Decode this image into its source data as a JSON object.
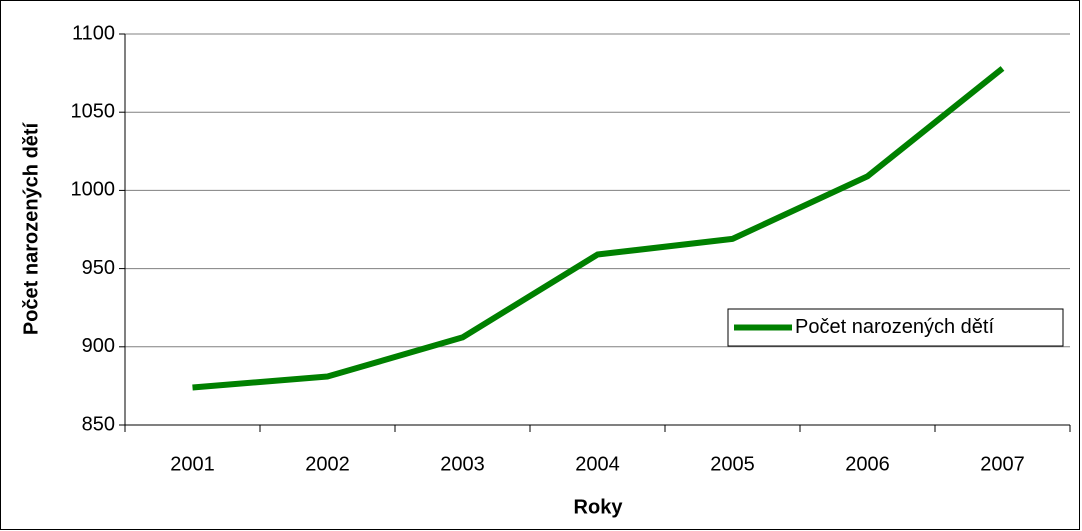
{
  "chart_data": {
    "type": "line",
    "categories": [
      "2001",
      "2002",
      "2003",
      "2004",
      "2005",
      "2006",
      "2007"
    ],
    "series": [
      {
        "name": "Počet narozených dětí",
        "color": "#008000",
        "values": [
          874,
          881,
          906,
          959,
          969,
          1009,
          1078
        ]
      }
    ],
    "ylim": [
      850,
      1100
    ],
    "yticks": [
      850,
      900,
      950,
      1000,
      1050,
      1100
    ],
    "x_label": "Roky",
    "y_label": "Počet narozených dětí",
    "grid": true,
    "legend": "right"
  }
}
